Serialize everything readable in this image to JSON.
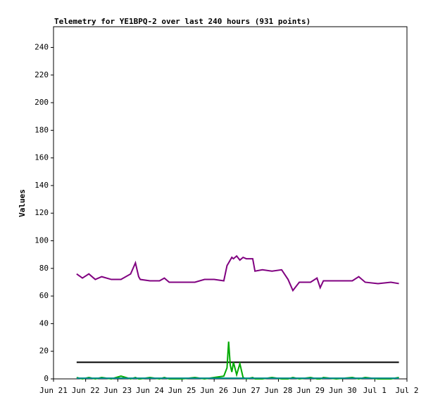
{
  "chart_data": {
    "type": "line",
    "title": "Telemetry for YE1BPQ-2 over last 240 hours (931 points)",
    "y_label": "Values",
    "x": [
      0.72,
      0.9,
      1.1,
      1.3,
      1.5,
      1.8,
      2.1,
      2.4,
      2.55,
      2.65,
      2.7,
      3.0,
      3.3,
      3.45,
      3.6,
      4.0,
      4.4,
      4.7,
      5.0,
      5.3,
      5.4,
      5.45,
      5.5,
      5.55,
      5.6,
      5.7,
      5.8,
      5.9,
      6.0,
      6.2,
      6.27,
      6.5,
      6.8,
      7.1,
      7.3,
      7.45,
      7.65,
      8.0,
      8.2,
      8.3,
      8.4,
      8.8,
      9.3,
      9.5,
      9.7,
      10.1,
      10.5,
      10.75
    ],
    "series": [
      {
        "color": "#800080",
        "values": [
          76,
          73,
          76,
          72,
          74,
          72,
          72,
          76,
          84,
          74,
          72,
          71,
          71,
          73,
          70,
          70,
          70,
          72,
          72,
          71,
          82,
          84,
          86,
          88,
          87,
          89,
          86,
          88,
          87,
          87,
          78,
          79,
          78,
          79,
          72,
          64,
          70,
          70,
          73,
          66,
          71,
          71,
          71,
          74,
          70,
          69,
          70,
          69
        ]
      },
      {
        "color": "#000000",
        "values": [
          12,
          12,
          12,
          12,
          12,
          12,
          12,
          12,
          12,
          12,
          12,
          12,
          12,
          12,
          12,
          12,
          12,
          12,
          12,
          12,
          12,
          12,
          12,
          12,
          12,
          12,
          12,
          12,
          12,
          12,
          12,
          12,
          12,
          12,
          12,
          12,
          12,
          12,
          12,
          12,
          12,
          12,
          12,
          12,
          12,
          12,
          12,
          12
        ]
      },
      {
        "color": "#00aa00",
        "values": [
          1,
          0,
          1,
          0,
          1,
          0,
          2,
          0,
          1,
          0,
          0,
          1,
          0,
          1,
          0,
          0,
          1,
          0,
          1,
          2,
          8,
          27,
          10,
          5,
          12,
          3,
          11,
          1,
          0,
          1,
          0,
          0,
          1,
          0,
          0,
          1,
          0,
          1,
          0,
          0,
          1,
          0,
          1,
          0,
          1,
          0,
          0,
          1
        ]
      },
      {
        "color": "#008b8b",
        "values": [
          0.5,
          0.5,
          0.5,
          0.5,
          0.5,
          0.5,
          0.5,
          0.5,
          0.5,
          0.5,
          0.5,
          0.5,
          0.5,
          0.5,
          0.5,
          0.5,
          0.5,
          0.5,
          0.5,
          0.5,
          0.5,
          0.5,
          0.5,
          0.5,
          0.5,
          0.5,
          0.5,
          0.5,
          0.5,
          0.5,
          0.5,
          0.5,
          0.5,
          0.5,
          0.5,
          0.5,
          0.5,
          0.5,
          0.5,
          0.5,
          0.5,
          0.5,
          0.5,
          0.5,
          0.5,
          0.5,
          0.5,
          0.5
        ]
      }
    ],
    "xlim": [
      0,
      11
    ],
    "xticks": [
      {
        "value": 0,
        "label": "Jun 21"
      },
      {
        "value": 1,
        "label": "Jun 22"
      },
      {
        "value": 2,
        "label": "Jun 23"
      },
      {
        "value": 3,
        "label": "Jun 24"
      },
      {
        "value": 4,
        "label": "Jun 25"
      },
      {
        "value": 5,
        "label": "Jun 26"
      },
      {
        "value": 6,
        "label": "Jun 27"
      },
      {
        "value": 7,
        "label": "Jun 28"
      },
      {
        "value": 8,
        "label": "Jun 29"
      },
      {
        "value": 9,
        "label": "Jun 30"
      },
      {
        "value": 10,
        "label": "Jul 1"
      },
      {
        "value": 11,
        "label": "Jul 2"
      }
    ],
    "ylim": [
      0,
      255
    ],
    "yticks": [
      0,
      20,
      40,
      60,
      80,
      100,
      120,
      140,
      160,
      180,
      200,
      220,
      240
    ]
  }
}
